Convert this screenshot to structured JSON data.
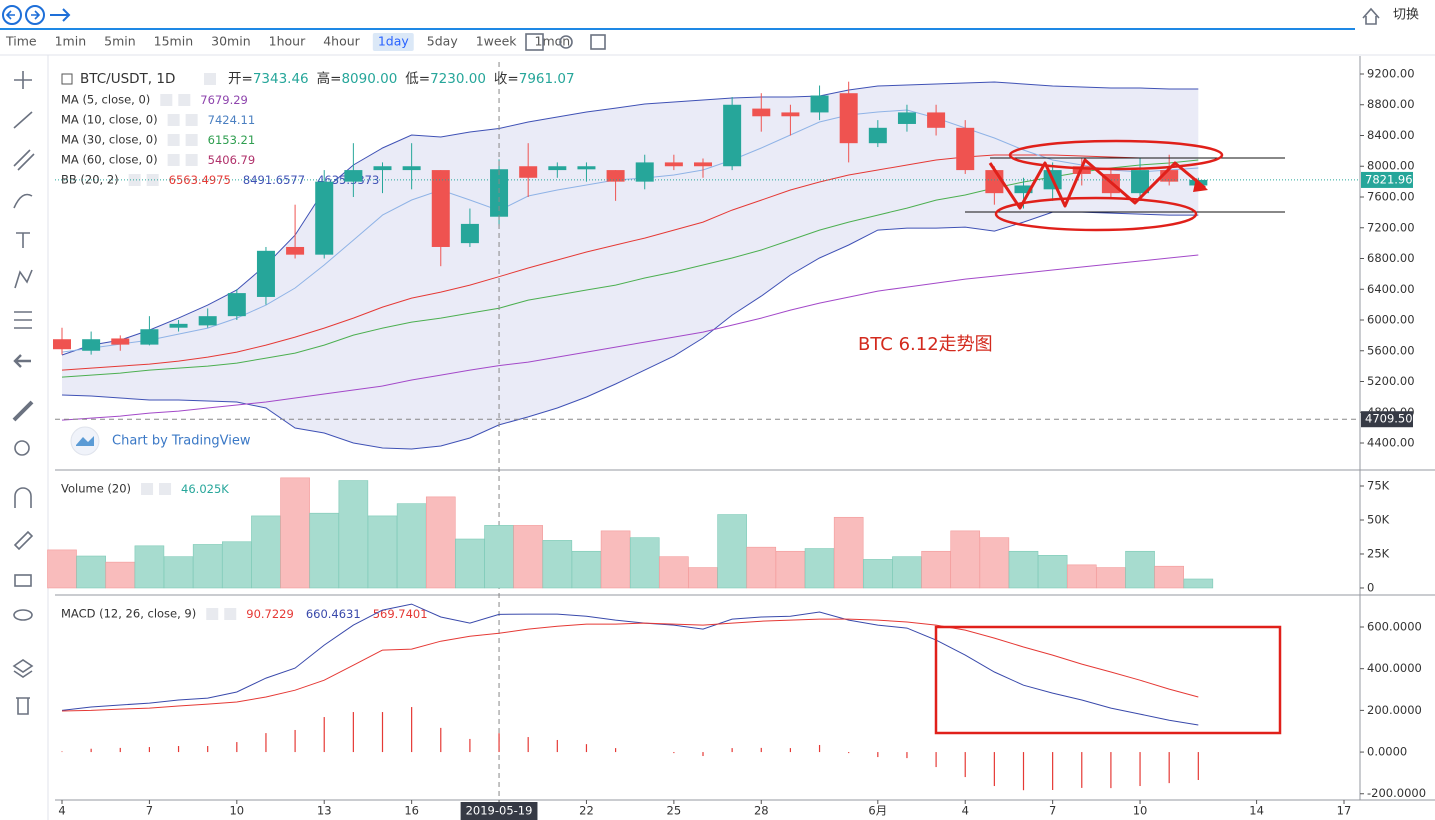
{
  "topbar": {
    "button": "切换"
  },
  "toolbar": {
    "intervals": [
      "Time",
      "1min",
      "5min",
      "15min",
      "30min",
      "1hour",
      "4hour",
      "1day",
      "5day",
      "1week",
      "1mon"
    ],
    "active_index": 7
  },
  "annotation": "BTC 6.12走势图",
  "watermark": "Chart by TradingView",
  "chart_data": [
    {
      "type": "candlestick",
      "title": "BTC/USDT, 1D",
      "readout": [
        {
          "name": "开=",
          "value": 7343.46
        },
        {
          "name": "高=",
          "value": 8090,
          "value_label": "8090.00"
        },
        {
          "name": "低=",
          "value": 7230,
          "value_label": "7230.00"
        },
        {
          "name": "收=",
          "value": 7961.07
        }
      ],
      "readout_color": "#26a69a",
      "legend": [
        {
          "name": "MA (5, close, 0)",
          "values": [
            7679.29
          ],
          "colors": [
            "#8e44ad"
          ]
        },
        {
          "name": "MA (10, close, 0)",
          "values": [
            7424.11
          ],
          "colors": [
            "#4a7fc1"
          ]
        },
        {
          "name": "MA (30, close, 0)",
          "values": [
            6153.21
          ],
          "colors": [
            "#2e9e4f"
          ]
        },
        {
          "name": "MA (60, close, 0)",
          "values": [
            5406.79
          ],
          "colors": [
            "#b0306a"
          ]
        },
        {
          "name": "BB (20, 2)",
          "values": [
            6563.4975,
            8491.6577,
            4635.3373
          ],
          "colors": [
            "#e53935",
            "#3f51b5",
            "#3f51b5"
          ]
        }
      ],
      "x": [
        "2019-05-04",
        "2019-05-05",
        "2019-05-06",
        "2019-05-07",
        "2019-05-08",
        "2019-05-09",
        "2019-05-10",
        "2019-05-11",
        "2019-05-12",
        "2019-05-13",
        "2019-05-14",
        "2019-05-15",
        "2019-05-16",
        "2019-05-17",
        "2019-05-18",
        "2019-05-19",
        "2019-05-20",
        "2019-05-21",
        "2019-05-22",
        "2019-05-23",
        "2019-05-24",
        "2019-05-25",
        "2019-05-26",
        "2019-05-27",
        "2019-05-28",
        "2019-05-29",
        "2019-05-30",
        "2019-05-31",
        "2019-06-01",
        "2019-06-02",
        "2019-06-03",
        "2019-06-04",
        "2019-06-05",
        "2019-06-06",
        "2019-06-07",
        "2019-06-08",
        "2019-06-09",
        "2019-06-10",
        "2019-06-11",
        "2019-06-12"
      ],
      "open": [
        5750,
        5600,
        5760,
        5680,
        5900,
        5930,
        6050,
        6300,
        6950,
        6850,
        7800,
        7950,
        7950,
        7950,
        7000,
        7343.46,
        8000,
        7950,
        7960,
        7950,
        7800,
        8050,
        8050,
        8000,
        8750,
        8700,
        8700,
        8950,
        8300,
        8550,
        8700,
        8500,
        7950,
        7650,
        7700,
        8000,
        7900,
        7650,
        7950,
        7750
      ],
      "high": [
        5900,
        5850,
        5800,
        6050,
        6000,
        6150,
        6400,
        6950,
        7500,
        7950,
        8300,
        8050,
        8300,
        7950,
        7450,
        8090,
        8300,
        8050,
        8050,
        7950,
        8150,
        8150,
        8100,
        8900,
        8950,
        8800,
        9050,
        9100,
        8600,
        8800,
        8800,
        8600,
        8000,
        7850,
        8050,
        8100,
        7950,
        8100,
        8150,
        7850
      ],
      "low": [
        5550,
        5550,
        5600,
        5670,
        5850,
        5900,
        6000,
        6200,
        6800,
        6800,
        7600,
        7650,
        7700,
        6700,
        6950,
        7230,
        7600,
        7850,
        7800,
        7550,
        7700,
        7950,
        7850,
        7950,
        8450,
        8400,
        8600,
        8050,
        8250,
        8450,
        8400,
        7900,
        7500,
        7450,
        7550,
        7750,
        7600,
        7550,
        7750,
        7700
      ],
      "close": [
        5620,
        5750,
        5680,
        5880,
        5950,
        6050,
        6350,
        6900,
        6850,
        7800,
        7950,
        8000,
        8000,
        6950,
        7250,
        7961.07,
        7850,
        8000,
        8000,
        7800,
        8050,
        8000,
        8000,
        8800,
        8650,
        8650,
        8920,
        8300,
        8500,
        8700,
        8500,
        7950,
        7650,
        7750,
        7950,
        7900,
        7650,
        7950,
        7800,
        7821.96
      ],
      "up_color": "#26a69a",
      "down_color": "#ef5350",
      "band": {
        "color": "#3f51b5",
        "fill": "rgba(80,90,190,0.12)",
        "upper": [
          5545,
          5674,
          5739,
          5869,
          6025,
          6194,
          6390,
          6715,
          7105,
          7691,
          8016,
          8237,
          8406,
          8380,
          8445,
          8491.6577,
          8575,
          8640,
          8705,
          8757,
          8810,
          8836,
          8862,
          8888,
          8901,
          8901,
          8914,
          8992,
          9044,
          9057,
          9070,
          9083,
          9096,
          9070,
          9044,
          9031,
          9018,
          9018,
          9005,
          9005
        ],
        "lower": [
          5024,
          5011,
          4985,
          4959,
          4959,
          4946,
          4933,
          4855,
          4595,
          4530,
          4400,
          4335,
          4322,
          4361,
          4465,
          4635.3373,
          4740,
          4855,
          4998,
          5167,
          5349,
          5531,
          5766,
          6064,
          6311,
          6585,
          6806,
          6975,
          7170,
          7196,
          7196,
          7209,
          7157,
          7274,
          7404,
          7404,
          7391,
          7378,
          7365,
          7365
        ]
      },
      "overlays": [
        {
          "color": "#e53935",
          "values": [
            5349,
            5375,
            5401,
            5427,
            5466,
            5518,
            5583,
            5674,
            5778,
            5895,
            6025,
            6168,
            6285,
            6363,
            6454,
            6563.4975,
            6676,
            6780,
            6884,
            6975,
            7066,
            7170,
            7274,
            7430,
            7560,
            7691,
            7795,
            7886,
            7951,
            8016,
            8081,
            8120,
            8146,
            8146,
            8146,
            8133,
            8120,
            8107,
            8107,
            8107
          ]
        },
        {
          "color": "#8fb3e6",
          "values": [
            5583,
            5635,
            5687,
            5739,
            5817,
            5895,
            6025,
            6194,
            6416,
            6715,
            7040,
            7365,
            7561,
            7691,
            7561,
            7424.11,
            7613,
            7691,
            7756,
            7821,
            7847,
            7886,
            7951,
            8081,
            8237,
            8406,
            8575,
            8666,
            8705,
            8731,
            8627,
            8497,
            8367,
            8211,
            8081,
            8016,
            7951,
            7925,
            7951,
            7977
          ]
        },
        {
          "color": "#4caf50",
          "values": [
            5258,
            5284,
            5310,
            5349,
            5375,
            5401,
            5440,
            5505,
            5570,
            5674,
            5804,
            5895,
            5973,
            6025,
            6090,
            6153.21,
            6259,
            6324,
            6390,
            6454,
            6546,
            6624,
            6715,
            6806,
            6910,
            7040,
            7170,
            7274,
            7365,
            7456,
            7560,
            7626,
            7717,
            7795,
            7860,
            7925,
            7977,
            8016,
            8042,
            8081
          ]
        },
        {
          "color": "#a349c9",
          "values": [
            4698,
            4724,
            4750,
            4789,
            4815,
            4855,
            4894,
            4933,
            4985,
            5037,
            5089,
            5141,
            5219,
            5284,
            5349,
            5406.79,
            5453,
            5518,
            5583,
            5648,
            5713,
            5778,
            5843,
            5934,
            6025,
            6129,
            6220,
            6298,
            6376,
            6428,
            6480,
            6532,
            6571,
            6610,
            6650,
            6689,
            6728,
            6767,
            6806,
            6845
          ]
        }
      ],
      "last_price": 7821.96,
      "crosshair": {
        "x": "2019-05-19",
        "y": {
          "value": 4709.5,
          "label": "4709.50"
        }
      },
      "ylim": [
        4075,
        9356
      ],
      "yticks": [
        {
          "value": 4400,
          "label": "4400.00"
        },
        {
          "value": 4800,
          "label": "4800.00"
        },
        {
          "value": 5200,
          "label": "5200.00"
        },
        {
          "value": 5600,
          "label": "5600.00"
        },
        {
          "value": 6000,
          "label": "6000.00"
        },
        {
          "value": 6400,
          "label": "6400.00"
        },
        {
          "value": 6800,
          "label": "6800.00"
        },
        {
          "value": 7200,
          "label": "7200.00"
        },
        {
          "value": 7600,
          "label": "7600.00"
        },
        {
          "value": 8000,
          "label": "8000.00"
        },
        {
          "value": 8400,
          "label": "8400.00"
        },
        {
          "value": 8800,
          "label": "8800.00"
        },
        {
          "value": 9200,
          "label": "9200.00"
        }
      ],
      "xlim": [
        "2019-05-04",
        "2019-06-17"
      ],
      "xticks": [
        {
          "value": "2019-05-04",
          "label": "4"
        },
        {
          "value": "2019-05-07",
          "label": "7"
        },
        {
          "value": "2019-05-10",
          "label": "10"
        },
        {
          "value": "2019-05-13",
          "label": "13"
        },
        {
          "value": "2019-05-16",
          "label": "16"
        },
        {
          "value": "2019-05-19",
          "label": "2019-05-19"
        },
        {
          "value": "2019-05-22",
          "label": "22"
        },
        {
          "value": "2019-05-25",
          "label": "25"
        },
        {
          "value": "2019-05-28",
          "label": "28"
        },
        {
          "value": "2019-06-01",
          "label": "6月"
        },
        {
          "value": "2019-06-04",
          "label": "4"
        },
        {
          "value": "2019-06-07",
          "label": "7"
        },
        {
          "value": "2019-06-10",
          "label": "10"
        },
        {
          "value": "2019-06-14",
          "label": "14"
        },
        {
          "value": "2019-06-17",
          "label": "17"
        }
      ],
      "grid": false
    },
    {
      "type": "bar",
      "legend": [
        {
          "name": "Volume (20)",
          "values": [
            {
              "value": 46.025,
              "label": "46.025K"
            }
          ],
          "colors": [
            "#26a69a"
          ]
        }
      ],
      "values": [
        28,
        23.5,
        19,
        31,
        23,
        32,
        34,
        53,
        81,
        55,
        79,
        53,
        62,
        67,
        36,
        46.025,
        46,
        35,
        27,
        42,
        37,
        23,
        15,
        54,
        30,
        27,
        29,
        52,
        21,
        23,
        27,
        42,
        37,
        27,
        24,
        17,
        15,
        27,
        16,
        6.6
      ],
      "up_color": "#a7dccf",
      "down_color": "#f9bcbc",
      "ylim": [
        -3.7,
        85.3
      ],
      "yticks": [
        0,
        {
          "value": 25,
          "label": "25K"
        },
        {
          "value": 50,
          "label": "50K"
        },
        {
          "value": 75,
          "label": "75K"
        }
      ],
      "grid": false
    },
    {
      "type": "line",
      "legend": [
        {
          "name": "MACD (12, 26, close, 9)",
          "values": [
            90.7229,
            660.4631,
            569.7401
          ],
          "colors": [
            "#e53935",
            "#3949ab",
            "#e53935"
          ]
        }
      ],
      "histogram": {
        "color": "#e53935",
        "values": [
          3,
          16,
          20,
          24,
          29,
          29,
          48,
          91,
          106,
          168,
          192,
          192,
          216,
          116,
          63,
          90.7229,
          72,
          58,
          38,
          19,
          0,
          -5,
          -19,
          19,
          20,
          19,
          34,
          -5,
          -24,
          -29,
          -72,
          -120,
          -163,
          -183,
          -182,
          -172,
          -173,
          -163,
          -149,
          -134
        ]
      },
      "series": [
        {
          "color": "#3949ab",
          "values": [
            200,
            216,
            226,
            235,
            250,
            259,
            288,
            355,
            403,
            513,
            609,
            681,
            710,
            648,
            619,
            660.4631,
            662,
            662,
            652,
            633,
            619,
            609,
            590,
            638,
            648,
            652,
            672,
            633,
            609,
            595,
            537,
            465,
            384,
            321,
            283,
            250,
            211,
            182,
            153,
            130
          ]
        },
        {
          "color": "#e53935",
          "values": [
            197,
            200,
            206,
            211,
            221,
            230,
            240,
            264,
            297,
            345,
            417,
            489,
            494,
            532,
            556,
            569.7401,
            590,
            604,
            614,
            614,
            619,
            614,
            609,
            619,
            628,
            633,
            638,
            638,
            633,
            624,
            609,
            585,
            547,
            504,
            465,
            422,
            384,
            345,
            302,
            264
          ]
        }
      ],
      "ylim": [
        -230,
        744
      ],
      "yticks": [
        {
          "value": -200,
          "label": "-200.0000"
        },
        {
          "value": 0,
          "label": "0.0000"
        },
        {
          "value": 200,
          "label": "200.0000"
        },
        {
          "value": 400,
          "label": "400.0000"
        },
        {
          "value": 600,
          "label": "600.0000"
        }
      ],
      "grid": false
    }
  ]
}
